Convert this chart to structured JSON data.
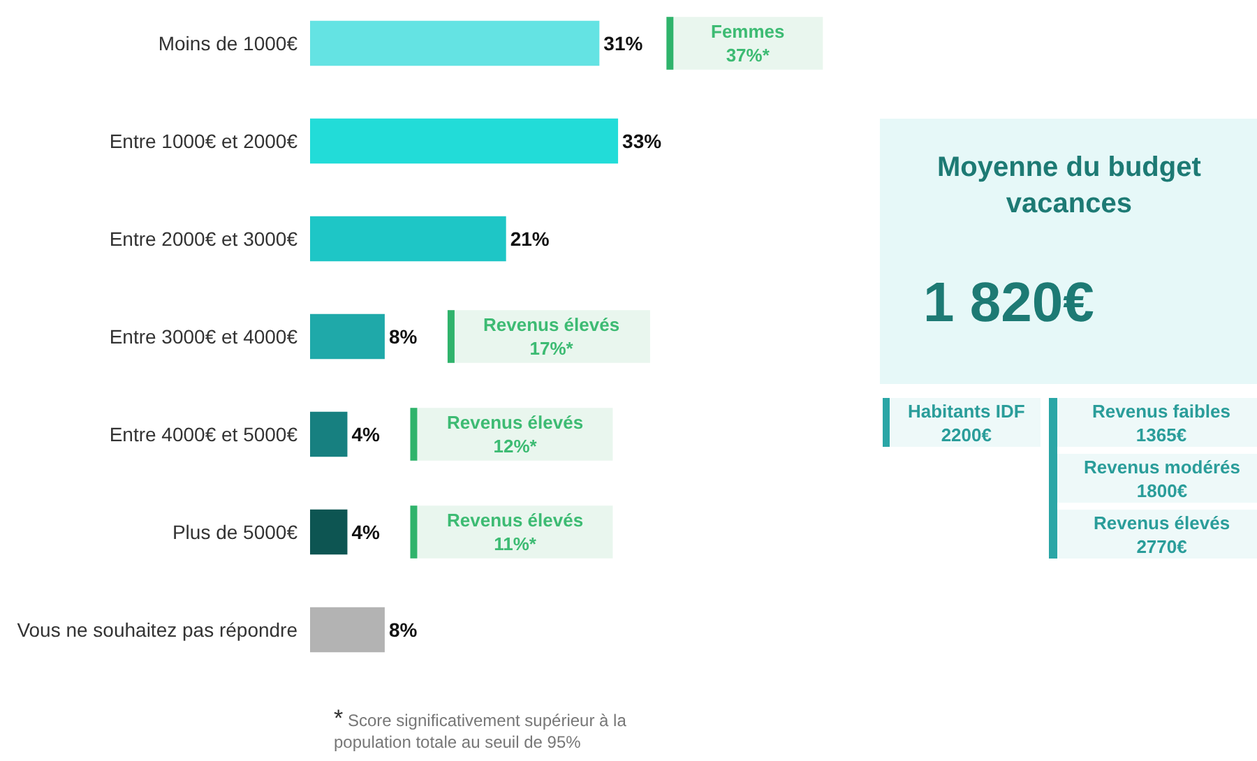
{
  "chart_data": [
    {
      "type": "bar",
      "orientation": "horizontal",
      "categories": [
        "Moins de 1000€",
        "Entre 1000€ et 2000€",
        "Entre 2000€ et 3000€",
        "Entre 3000€ et 4000€",
        "Entre 4000€ et 5000€",
        "Plus de 5000€",
        "Vous ne souhaitez pas répondre"
      ],
      "values": [
        31,
        33,
        21,
        8,
        4,
        4,
        8
      ],
      "value_labels": [
        "31%",
        "33%",
        "21%",
        "8%",
        "4%",
        "4%",
        "8%"
      ],
      "colors": [
        "#64e3e3",
        "#22dcd8",
        "#1ec6c6",
        "#1fa9a9",
        "#178080",
        "#0d5552",
        "#b3b3b3"
      ],
      "annotations": [
        "Femmes\n37%*",
        "Revenus élevés\n17%*",
        "Revenus élevés\n12%*",
        "Revenus élevés\n11%*",
        "* Score significativement supérieur à la\npopulation totale au seuil de 95%"
      ]
    },
    {
      "type": "other",
      "title": "Moyenne du budget vacances",
      "annotations": [
        "1 820€",
        "Habitants IDF\n2200€",
        "Revenus faibles\n1365€",
        "Revenus modérés\n1800€",
        "Revenus élevés\n2770€"
      ]
    }
  ]
}
